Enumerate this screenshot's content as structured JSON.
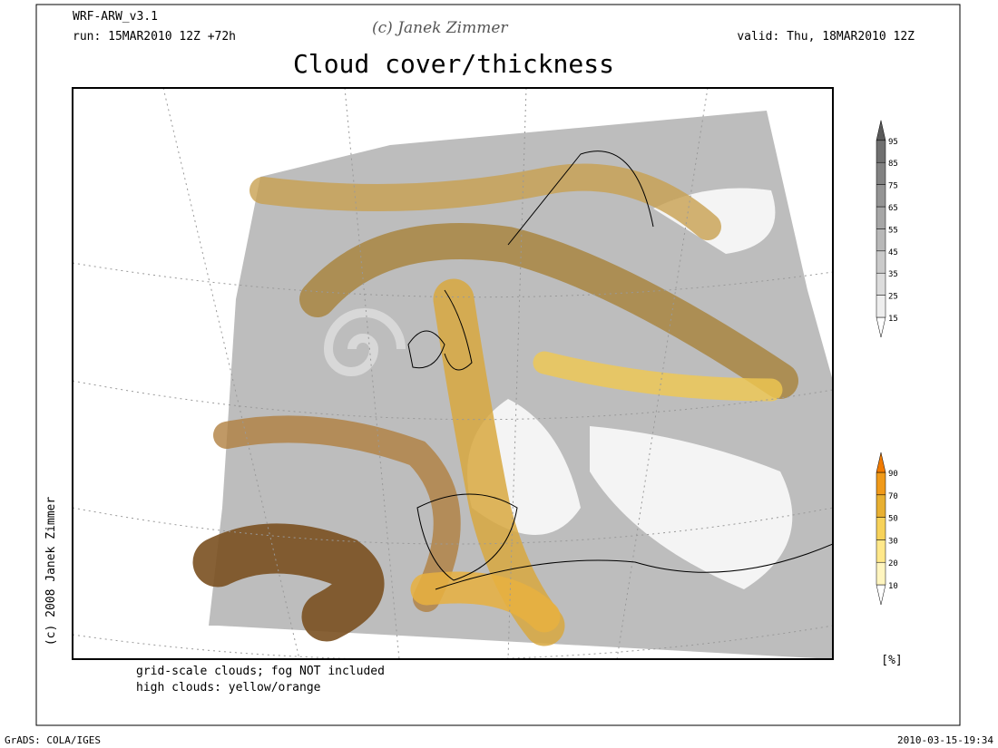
{
  "header": {
    "model": "WRF-ARW_v3.1",
    "run": "run: 15MAR2010 12Z +72h",
    "credit": "(c) Janek Zimmer",
    "valid": "valid: Thu, 18MAR2010 12Z",
    "title": "Cloud cover/thickness"
  },
  "side_credit": "(c) 2008 Janek Zimmer",
  "notes": [
    "grid-scale clouds; fog NOT included",
    "high clouds: yellow/orange"
  ],
  "legends": [
    {
      "labels": [
        15,
        25,
        35,
        45,
        55,
        65,
        75,
        85,
        95
      ],
      "colors": [
        "#ffffff",
        "#eeeeee",
        "#dcdcdc",
        "#cacaca",
        "#b8b8b8",
        "#a6a6a6",
        "#949494",
        "#828282",
        "#707070",
        "#5a5a5a"
      ]
    },
    {
      "labels": [
        10,
        20,
        30,
        50,
        70,
        90
      ],
      "colors": [
        "#ffffff",
        "#fff5bf",
        "#ffe88a",
        "#f7d25a",
        "#e8b032",
        "#f09a1a",
        "#f07a00"
      ]
    }
  ],
  "unit": "[%]",
  "footer": {
    "left": "GrADS: COLA/IGES",
    "right": "2010-03-15-19:34"
  }
}
